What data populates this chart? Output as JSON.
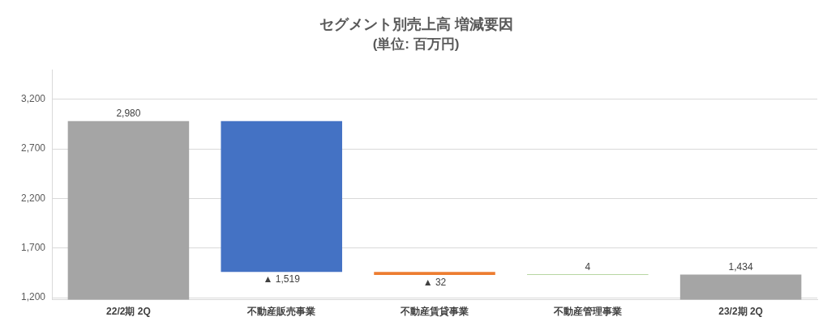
{
  "chart_data": {
    "type": "bar",
    "title": "セグメント別売上高 増減要因",
    "subtitle": "(単位: 百万円)",
    "categories": [
      "22/2期 2Q",
      "不動産販売事業",
      "不動産賃貸事業",
      "不動産管理事業",
      "23/2期 2Q"
    ],
    "values": [
      2980,
      -1519,
      -32,
      4,
      1434
    ],
    "base": [
      0,
      2980,
      1461,
      1429,
      0
    ],
    "colors": [
      "#a5a5a5",
      "#4472c4",
      "#ed7d31",
      "#70ad47",
      "#a5a5a5"
    ],
    "value_labels": [
      "2,980",
      "▲ 1,519",
      "▲ 32",
      "4",
      "1,434"
    ],
    "ylim": [
      1180,
      3500
    ],
    "yticks": [
      {
        "value": 1200,
        "label": "1,200"
      },
      {
        "value": 1700,
        "label": "1,700"
      },
      {
        "value": 2200,
        "label": "2,200"
      },
      {
        "value": 2700,
        "label": "2,700"
      },
      {
        "value": 3200,
        "label": "3,200"
      }
    ],
    "grid": "y",
    "legend": false
  }
}
